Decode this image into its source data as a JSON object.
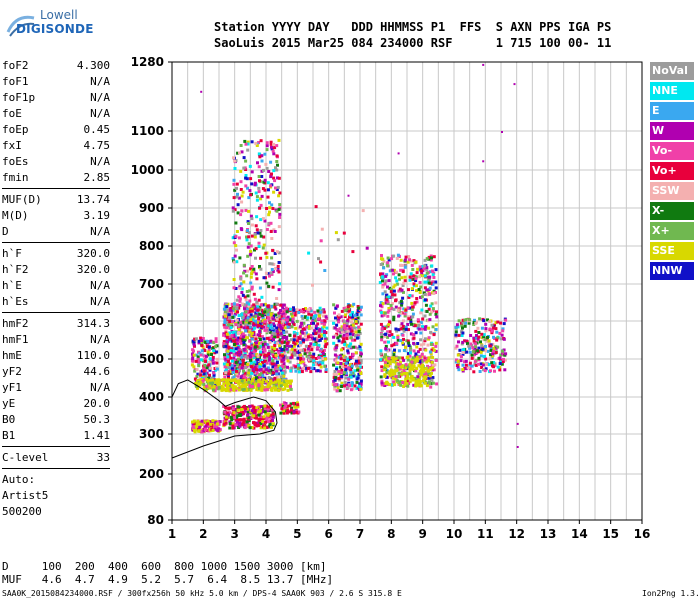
{
  "logo": {
    "line1": "Lowell",
    "line2": "DIGISONDE"
  },
  "header": {
    "line1": "Station YYYY DAY   DDD HHMMSS P1  FFS  S AXN PPS IGA PS",
    "line2": "SaoLuis 2015 Mar25 084 234000 RSF      1 715 100 00- 11"
  },
  "params": {
    "group1": [
      {
        "name": "foF2",
        "value": "4.300"
      },
      {
        "name": "foF1",
        "value": "N/A"
      },
      {
        "name": "foF1p",
        "value": "N/A"
      },
      {
        "name": "foE",
        "value": "N/A"
      },
      {
        "name": "foEp",
        "value": "0.45"
      },
      {
        "name": "fxI",
        "value": "4.75"
      },
      {
        "name": "foEs",
        "value": "N/A"
      },
      {
        "name": "fmin",
        "value": "2.85"
      }
    ],
    "group2": [
      {
        "name": "MUF(D)",
        "value": "13.74"
      },
      {
        "name": "M(D)",
        "value": "3.19"
      },
      {
        "name": "D",
        "value": "N/A"
      }
    ],
    "group3": [
      {
        "name": "h`F",
        "value": "320.0"
      },
      {
        "name": "h`F2",
        "value": "320.0"
      },
      {
        "name": "h`E",
        "value": "N/A"
      },
      {
        "name": "h`Es",
        "value": "N/A"
      }
    ],
    "group4": [
      {
        "name": "hmF2",
        "value": "314.3"
      },
      {
        "name": "hmF1",
        "value": "N/A"
      },
      {
        "name": "hmE",
        "value": "110.0"
      },
      {
        "name": "yF2",
        "value": "44.6"
      },
      {
        "name": "yF1",
        "value": "N/A"
      },
      {
        "name": "yE",
        "value": "20.0"
      },
      {
        "name": "B0",
        "value": "50.3"
      },
      {
        "name": "B1",
        "value": "1.41"
      }
    ],
    "group5": [
      {
        "name": "C-level",
        "value": "33"
      }
    ],
    "auto": [
      "Auto:",
      "Artist5",
      "500200"
    ]
  },
  "legend": [
    {
      "label": "NoVal",
      "color": "#9c9c9c"
    },
    {
      "label": "NNE",
      "color": "#00e8f0"
    },
    {
      "label": "E",
      "color": "#3aa8f0"
    },
    {
      "label": "W",
      "color": "#b000b0"
    },
    {
      "label": "Vo-",
      "color": "#f040a8"
    },
    {
      "label": "Vo+",
      "color": "#e8003c"
    },
    {
      "label": "SSW",
      "color": "#f4b0b0"
    },
    {
      "label": "X-",
      "color": "#107a10"
    },
    {
      "label": "X+",
      "color": "#70b850"
    },
    {
      "label": "SSE",
      "color": "#d8d800"
    },
    {
      "label": "NNW",
      "color": "#1010c8"
    }
  ],
  "bottom": {
    "d_line": "D     100  200  400  600  800 1000 1500 3000 [km]",
    "muf_line": "MUF   4.6  4.7  4.9  5.2  5.7  6.4  8.5 13.7 [MHz]"
  },
  "footer": {
    "left": "SAA0K_2015084234000.RSF / 300fx256h 50 kHz 5.0 km / DPS-4 SAA0K 903 / 2.6 S 315.8 E",
    "right": "Ion2Png 1.3.17"
  },
  "chart_data": {
    "type": "scatter",
    "title": "",
    "xlabel": "",
    "ylabel": "",
    "xlim": [
      1,
      16
    ],
    "ylim": [
      80,
      1280
    ],
    "x_ticks": [
      "1",
      "2",
      "3",
      "4",
      "5",
      "6",
      "7",
      "8",
      "9",
      "10",
      "11",
      "12",
      "13",
      "14",
      "15",
      "16"
    ],
    "y_ticks": [
      "80",
      "200",
      "300",
      "400",
      "500",
      "600",
      "700",
      "800",
      "900",
      "1000",
      "1100",
      "1280"
    ],
    "y_tick_values": [
      80,
      200,
      300,
      400,
      500,
      600,
      700,
      800,
      900,
      1000,
      1100,
      1280
    ],
    "y_scale": "ionogram-virtual-height",
    "grid": true,
    "echo_clusters": [
      {
        "x_range": [
          1.6,
          2.4
        ],
        "y_range": [
          430,
          560
        ],
        "n": 160,
        "palette": "mixed"
      },
      {
        "x_range": [
          1.6,
          2.5
        ],
        "y_range": [
          310,
          340
        ],
        "n": 120,
        "palette": "yellowred"
      },
      {
        "x_range": [
          2.6,
          4.6
        ],
        "y_range": [
          440,
          650
        ],
        "n": 1100,
        "palette": "mixed"
      },
      {
        "x_range": [
          2.9,
          4.4
        ],
        "y_range": [
          640,
          1080
        ],
        "n": 320,
        "palette": "mixed"
      },
      {
        "x_range": [
          2.6,
          4.2
        ],
        "y_range": [
          320,
          380
        ],
        "n": 260,
        "palette": "red"
      },
      {
        "x_range": [
          1.7,
          4.8
        ],
        "y_range": [
          420,
          450
        ],
        "n": 300,
        "palette": "yellow"
      },
      {
        "x_range": [
          4.6,
          5.9
        ],
        "y_range": [
          470,
          640
        ],
        "n": 380,
        "palette": "mixed"
      },
      {
        "x_range": [
          4.4,
          5.0
        ],
        "y_range": [
          360,
          390
        ],
        "n": 50,
        "palette": "red"
      },
      {
        "x_range": [
          6.1,
          7.0
        ],
        "y_range": [
          420,
          650
        ],
        "n": 350,
        "palette": "mixed"
      },
      {
        "x_range": [
          7.6,
          9.4
        ],
        "y_range": [
          430,
          780
        ],
        "n": 600,
        "palette": "mixed"
      },
      {
        "x_range": [
          7.7,
          9.3
        ],
        "y_range": [
          430,
          510
        ],
        "n": 200,
        "palette": "yellow"
      },
      {
        "x_range": [
          10.0,
          11.6
        ],
        "y_range": [
          470,
          610
        ],
        "n": 260,
        "palette": "mixed"
      },
      {
        "x_range": [
          5.2,
          7.2
        ],
        "y_range": [
          700,
          960
        ],
        "n": 14,
        "palette": "mixed"
      }
    ],
    "profile_curve": [
      [
        1.0,
        240
      ],
      [
        2.0,
        270
      ],
      [
        3.0,
        295
      ],
      [
        3.8,
        300
      ],
      [
        4.25,
        310
      ],
      [
        4.35,
        330
      ],
      [
        4.3,
        360
      ],
      [
        4.0,
        390
      ],
      [
        3.6,
        400
      ],
      [
        3.0,
        385
      ],
      [
        2.7,
        375
      ],
      [
        2.5,
        390
      ],
      [
        2.0,
        420
      ],
      [
        1.5,
        445
      ],
      [
        1.2,
        435
      ],
      [
        1.0,
        400
      ]
    ],
    "isolated_points": [
      [
        1.9,
        1205
      ],
      [
        10.9,
        1275
      ],
      [
        11.9,
        1225
      ],
      [
        11.5,
        1100
      ],
      [
        10.9,
        1025
      ],
      [
        8.2,
        1045
      ],
      [
        12.0,
        330
      ],
      [
        12.0,
        270
      ],
      [
        6.6,
        935
      ]
    ]
  }
}
